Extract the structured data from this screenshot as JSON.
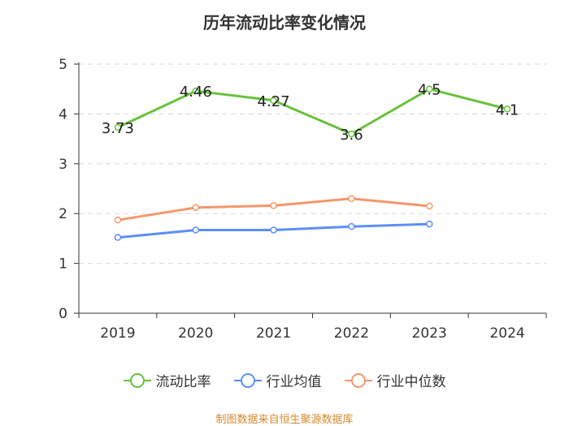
{
  "chart_data": {
    "type": "line",
    "title": "历年流动比率变化情况",
    "categories": [
      "2019",
      "2020",
      "2021",
      "2022",
      "2023",
      "2024"
    ],
    "ylim": [
      0,
      5
    ],
    "yticks": [
      "0",
      "1",
      "2",
      "3",
      "4",
      "5"
    ],
    "grid": true,
    "legend_position": "bottom",
    "series": [
      {
        "name": "流动比率",
        "color": "#67c23a",
        "values": [
          3.73,
          4.46,
          4.27,
          3.6,
          4.5,
          4.1
        ],
        "labels": [
          "3.73",
          "4.46",
          "4.27",
          "3.6",
          "4.5",
          "4.1"
        ]
      },
      {
        "name": "行业均值",
        "color": "#5b8ff9",
        "values": [
          1.52,
          1.67,
          1.67,
          1.74,
          1.79,
          null
        ]
      },
      {
        "name": "行业中位数",
        "color": "#f6966b",
        "values": [
          1.87,
          2.12,
          2.16,
          2.3,
          2.15,
          null
        ]
      }
    ]
  },
  "source": "制图数据来自恒生聚源数据库"
}
